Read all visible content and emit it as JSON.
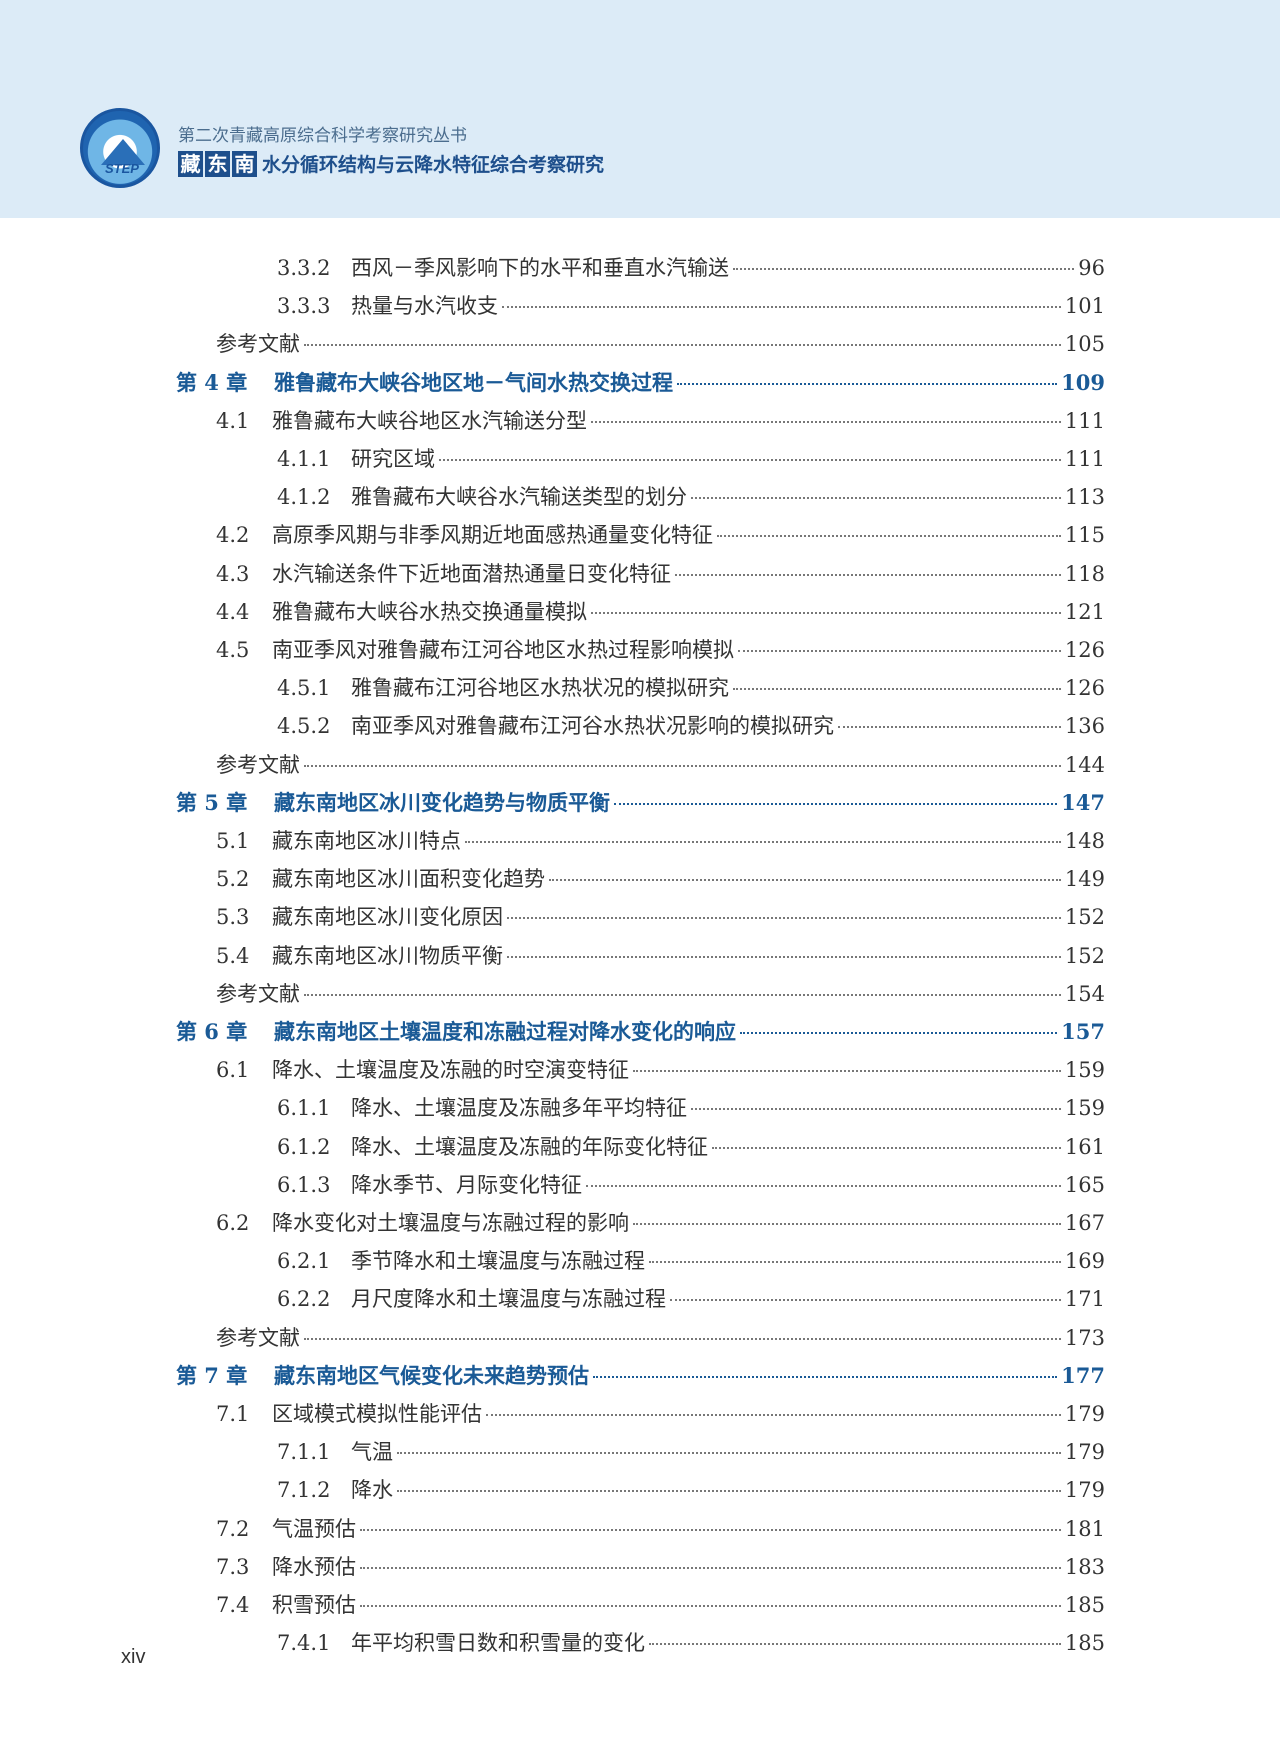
{
  "header": {
    "series": "第二次青藏高原综合科学考察研究丛书",
    "title_boxed": [
      "藏",
      "东",
      "南"
    ],
    "title_rest": "水分循环结构与云降水特征综合考察研究",
    "logo_text": "STEP"
  },
  "colors": {
    "header_bg": "#dcebf7",
    "chapter": "#1a5a96",
    "title_box": "#1e4f8c"
  },
  "toc": [
    {
      "level": "sub",
      "num": "3.3.2",
      "title": "西风－季风影响下的水平和垂直水汽输送",
      "page": "96"
    },
    {
      "level": "sub",
      "num": "3.3.3",
      "title": "热量与水汽收支",
      "page": "101"
    },
    {
      "level": "ref",
      "num": "",
      "title": "参考文献",
      "page": "105"
    },
    {
      "level": "chapter",
      "num": "第 4 章",
      "title": "雅鲁藏布大峡谷地区地－气间水热交换过程",
      "page": "109"
    },
    {
      "level": "sec",
      "num": "4.1",
      "title": "雅鲁藏布大峡谷地区水汽输送分型",
      "page": "111"
    },
    {
      "level": "sub",
      "num": "4.1.1",
      "title": "研究区域",
      "page": "111"
    },
    {
      "level": "sub",
      "num": "4.1.2",
      "title": "雅鲁藏布大峡谷水汽输送类型的划分",
      "page": "113"
    },
    {
      "level": "sec",
      "num": "4.2",
      "title": "高原季风期与非季风期近地面感热通量变化特征",
      "page": "115"
    },
    {
      "level": "sec",
      "num": "4.3",
      "title": "水汽输送条件下近地面潜热通量日变化特征",
      "page": "118"
    },
    {
      "level": "sec",
      "num": "4.4",
      "title": "雅鲁藏布大峡谷水热交换通量模拟",
      "page": "121"
    },
    {
      "level": "sec",
      "num": "4.5",
      "title": "南亚季风对雅鲁藏布江河谷地区水热过程影响模拟",
      "page": "126"
    },
    {
      "level": "sub",
      "num": "4.5.1",
      "title": "雅鲁藏布江河谷地区水热状况的模拟研究",
      "page": "126"
    },
    {
      "level": "sub",
      "num": "4.5.2",
      "title": "南亚季风对雅鲁藏布江河谷水热状况影响的模拟研究",
      "page": "136"
    },
    {
      "level": "ref",
      "num": "",
      "title": "参考文献",
      "page": "144"
    },
    {
      "level": "chapter",
      "num": "第 5 章",
      "title": "藏东南地区冰川变化趋势与物质平衡",
      "page": "147"
    },
    {
      "level": "sec",
      "num": "5.1",
      "title": "藏东南地区冰川特点",
      "page": "148"
    },
    {
      "level": "sec",
      "num": "5.2",
      "title": "藏东南地区冰川面积变化趋势",
      "page": "149"
    },
    {
      "level": "sec",
      "num": "5.3",
      "title": "藏东南地区冰川变化原因",
      "page": "152"
    },
    {
      "level": "sec",
      "num": "5.4",
      "title": "藏东南地区冰川物质平衡",
      "page": "152"
    },
    {
      "level": "ref",
      "num": "",
      "title": "参考文献",
      "page": "154"
    },
    {
      "level": "chapter",
      "num": "第 6 章",
      "title": "藏东南地区土壤温度和冻融过程对降水变化的响应",
      "page": "157"
    },
    {
      "level": "sec",
      "num": "6.1",
      "title": "降水、土壤温度及冻融的时空演变特征",
      "page": "159"
    },
    {
      "level": "sub",
      "num": "6.1.1",
      "title": "降水、土壤温度及冻融多年平均特征",
      "page": "159"
    },
    {
      "level": "sub",
      "num": "6.1.2",
      "title": "降水、土壤温度及冻融的年际变化特征",
      "page": "161"
    },
    {
      "level": "sub",
      "num": "6.1.3",
      "title": "降水季节、月际变化特征",
      "page": "165"
    },
    {
      "level": "sec",
      "num": "6.2",
      "title": "降水变化对土壤温度与冻融过程的影响",
      "page": "167"
    },
    {
      "level": "sub",
      "num": "6.2.1",
      "title": "季节降水和土壤温度与冻融过程",
      "page": "169"
    },
    {
      "level": "sub",
      "num": "6.2.2",
      "title": "月尺度降水和土壤温度与冻融过程",
      "page": "171"
    },
    {
      "level": "ref",
      "num": "",
      "title": "参考文献",
      "page": "173"
    },
    {
      "level": "chapter",
      "num": "第 7 章",
      "title": "藏东南地区气候变化未来趋势预估",
      "page": "177"
    },
    {
      "level": "sec",
      "num": "7.1",
      "title": "区域模式模拟性能评估",
      "page": "179"
    },
    {
      "level": "sub",
      "num": "7.1.1",
      "title": "气温",
      "page": "179"
    },
    {
      "level": "sub",
      "num": "7.1.2",
      "title": "降水",
      "page": "179"
    },
    {
      "level": "sec",
      "num": "7.2",
      "title": "气温预估",
      "page": "181"
    },
    {
      "level": "sec",
      "num": "7.3",
      "title": "降水预估",
      "page": "183"
    },
    {
      "level": "sec",
      "num": "7.4",
      "title": "积雪预估",
      "page": "185"
    },
    {
      "level": "sub",
      "num": "7.4.1",
      "title": "年平均积雪日数和积雪量的变化",
      "page": "185"
    }
  ],
  "footer": {
    "page_number": "xiv"
  }
}
